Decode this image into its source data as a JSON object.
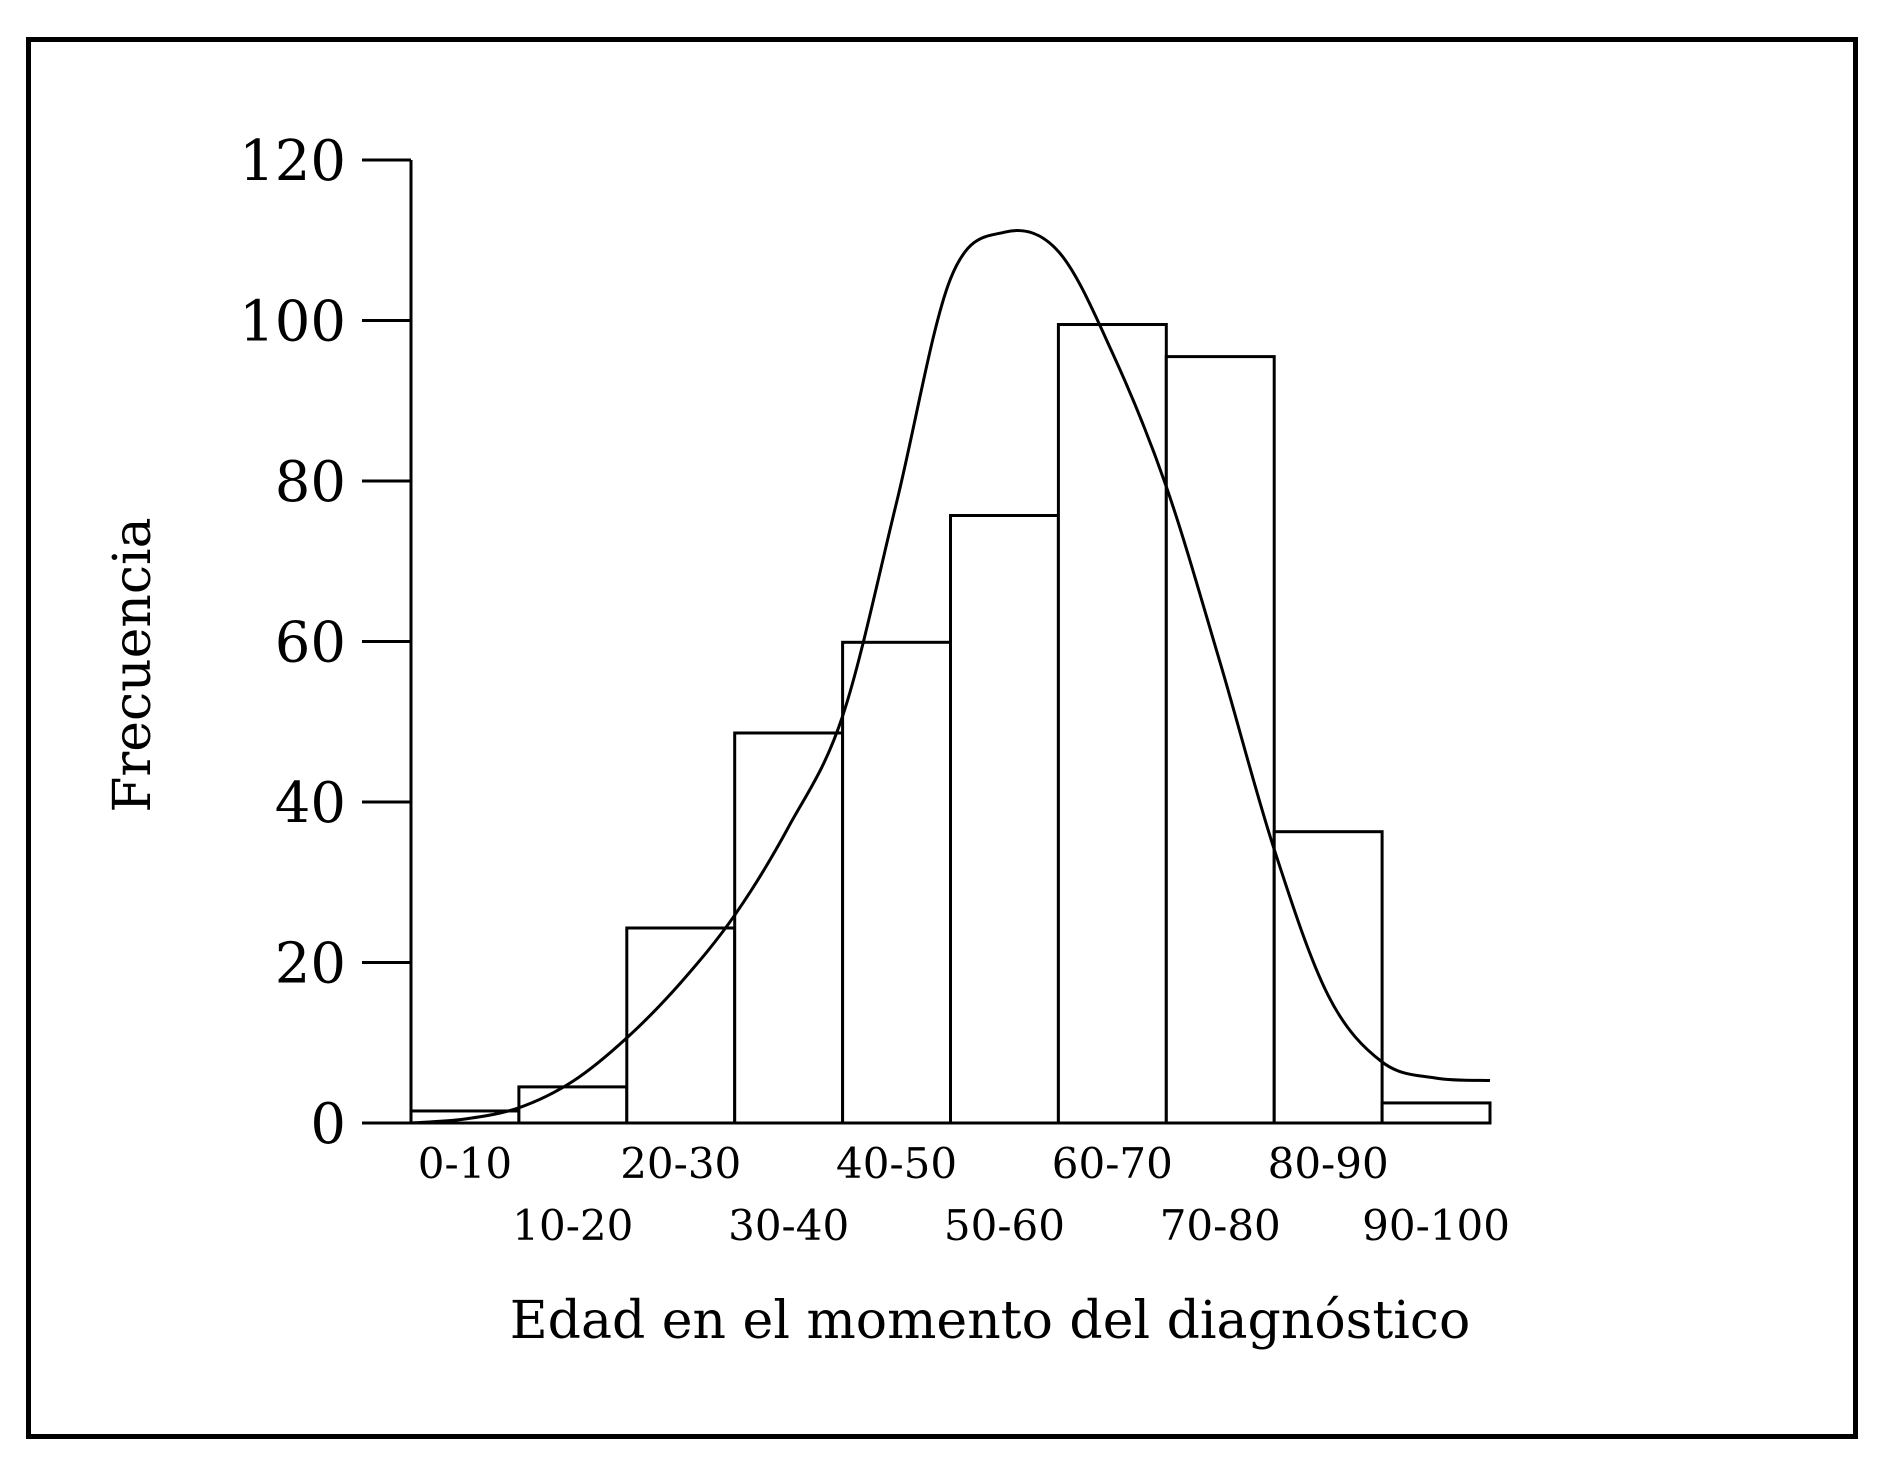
{
  "chart_data": {
    "type": "bar",
    "categories": [
      "0-10",
      "10-20",
      "20-30",
      "30-40",
      "40-50",
      "50-60",
      "60-70",
      "70-80",
      "80-90",
      "90-100"
    ],
    "values": [
      1.5,
      4.5,
      24.3,
      48.6,
      59.9,
      75.7,
      99.5,
      95.5,
      36.3,
      2.5
    ],
    "xlabel": "Edad en el momento del diagnóstico",
    "ylabel": "Frecuencia",
    "ylim": [
      0,
      120
    ],
    "yticks": [
      0,
      20,
      40,
      60,
      80,
      100,
      120
    ],
    "grid": false,
    "bar_fill": "#ffffff",
    "bar_stroke": "#000000",
    "curve": {
      "type": "line",
      "x": [
        0,
        5,
        10,
        15,
        20,
        25,
        30,
        35,
        40,
        45,
        50,
        55,
        60,
        65,
        70,
        75,
        80,
        85,
        90,
        95,
        100
      ],
      "values": [
        0,
        0.5,
        1.9,
        5.2,
        10.6,
        17.5,
        25.9,
        36.9,
        50.7,
        77.3,
        105.2,
        111.0,
        108.6,
        96.0,
        79.3,
        57.3,
        34.1,
        15.9,
        7.6,
        5.6,
        5.3
      ]
    }
  }
}
